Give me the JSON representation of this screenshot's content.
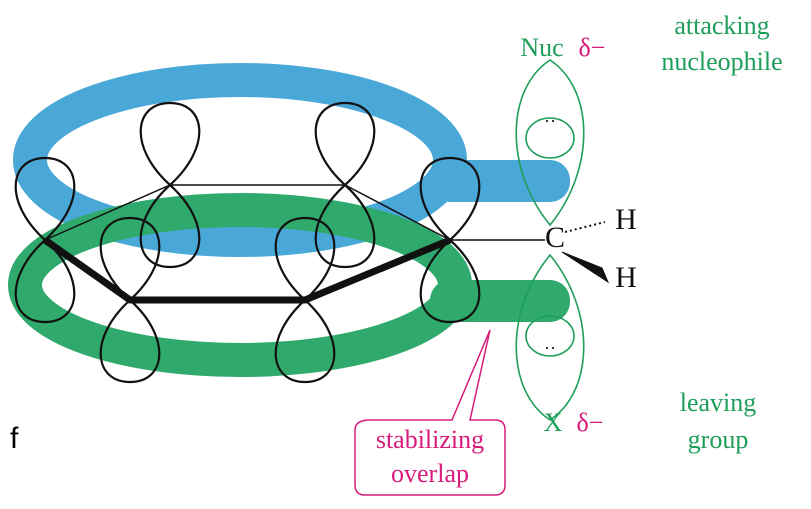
{
  "labels": {
    "stray": "f",
    "nuc": "Nuc",
    "nuc_charge": "δ−",
    "attacking": [
      "attacking",
      "nucleophile"
    ],
    "carbon": "C",
    "h1": "H",
    "h2": "H",
    "x": "X",
    "x_charge": "δ−",
    "leaving": [
      "leaving",
      "group"
    ],
    "callout": [
      "stabilizing",
      "overlap"
    ]
  }
}
